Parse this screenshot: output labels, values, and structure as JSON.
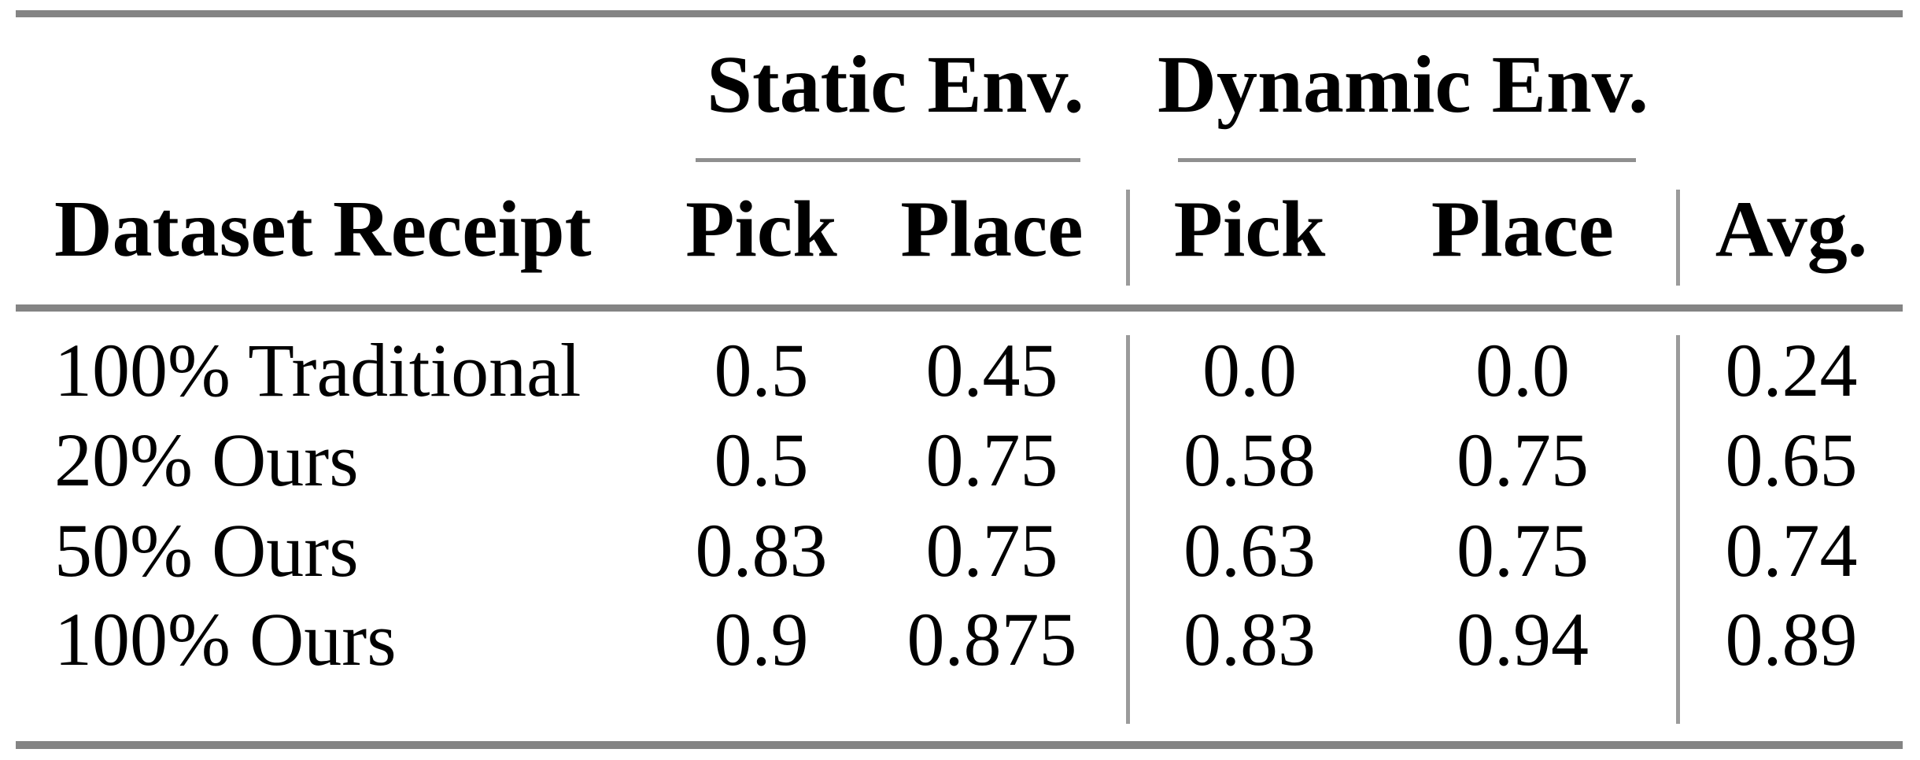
{
  "table": {
    "group_headers": {
      "static": "Static Env.",
      "dynamic": "Dynamic Env."
    },
    "columns": {
      "label": "Dataset Receipt",
      "static_pick": "Pick",
      "static_place": "Place",
      "dynamic_pick": "Pick",
      "dynamic_place": "Place",
      "avg": "Avg."
    },
    "rows": [
      {
        "label": "100% Traditional",
        "static_pick": "0.5",
        "static_place": "0.45",
        "dynamic_pick": "0.0",
        "dynamic_place": "0.0",
        "avg": "0.24"
      },
      {
        "label": "20% Ours",
        "static_pick": "0.5",
        "static_place": "0.75",
        "dynamic_pick": "0.58",
        "dynamic_place": "0.75",
        "avg": "0.65"
      },
      {
        "label": "50% Ours",
        "static_pick": "0.83",
        "static_place": "0.75",
        "dynamic_pick": "0.63",
        "dynamic_place": "0.75",
        "avg": "0.74"
      },
      {
        "label": "100% Ours",
        "static_pick": "0.9",
        "static_place": "0.875",
        "dynamic_pick": "0.83",
        "dynamic_place": "0.94",
        "avg": "0.89"
      }
    ],
    "colors": {
      "rule_thick": "#848484",
      "rule_thin": "#8f8f8f",
      "vline": "#9b9b9b",
      "text": "#000000",
      "background": "#ffffff"
    }
  },
  "chart_data": {
    "type": "table",
    "title": "",
    "column_groups": [
      "",
      "Static Env.",
      "Static Env.",
      "Dynamic Env.",
      "Dynamic Env.",
      ""
    ],
    "columns": [
      "Dataset Receipt",
      "Pick",
      "Place",
      "Pick",
      "Place",
      "Avg."
    ],
    "rows": [
      [
        "100% Traditional",
        0.5,
        0.45,
        0.0,
        0.0,
        0.24
      ],
      [
        "20% Ours",
        0.5,
        0.75,
        0.58,
        0.75,
        0.65
      ],
      [
        "50% Ours",
        0.83,
        0.75,
        0.63,
        0.75,
        0.74
      ],
      [
        "100% Ours",
        0.9,
        0.875,
        0.83,
        0.94,
        0.89
      ]
    ]
  }
}
